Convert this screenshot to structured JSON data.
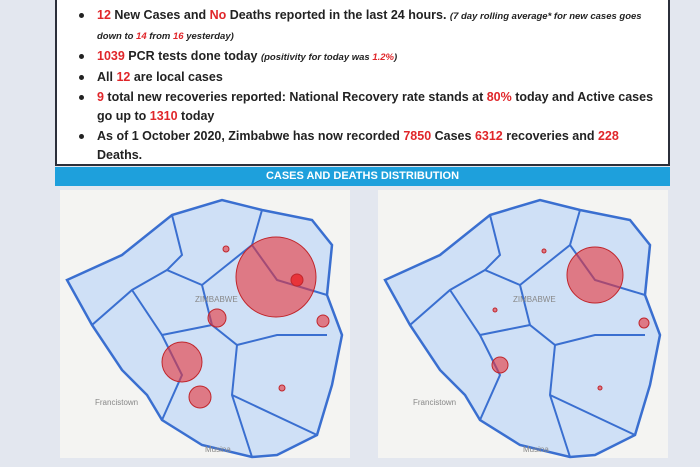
{
  "bullets": [
    {
      "segments": [
        {
          "text": "12",
          "highlight": true
        },
        {
          "text": " New Cases and "
        },
        {
          "text": "No",
          "highlight": true
        },
        {
          "text": " Deaths reported in the last 24 hours. "
        },
        {
          "text": "(7 day rolling average* for new cases goes down to ",
          "italic": true
        },
        {
          "text": "14",
          "italic": true,
          "highlight": true
        },
        {
          "text": " from ",
          "italic": true
        },
        {
          "text": "16",
          "italic": true,
          "highlight": true
        },
        {
          "text": " yesterday)",
          "italic": true
        }
      ]
    },
    {
      "segments": [
        {
          "text": "1039",
          "highlight": true
        },
        {
          "text": " PCR tests done today "
        },
        {
          "text": "(positivity for today was ",
          "italic": true
        },
        {
          "text": "1.2%",
          "italic": true,
          "highlight": true
        },
        {
          "text": ")",
          "italic": true
        }
      ]
    },
    {
      "segments": [
        {
          "text": "All "
        },
        {
          "text": "12",
          "highlight": true
        },
        {
          "text": " are local cases"
        }
      ]
    },
    {
      "segments": [
        {
          "text": "9",
          "highlight": true
        },
        {
          "text": " total new recoveries reported: National Recovery rate stands at "
        },
        {
          "text": "80%",
          "highlight": true
        },
        {
          "text": " today and Active cases go up to "
        },
        {
          "text": "1310",
          "highlight": true
        },
        {
          "text": " today"
        }
      ]
    },
    {
      "segments": [
        {
          "text": "As of 1 October 2020, Zimbabwe has now recorded "
        },
        {
          "text": "7850",
          "highlight": true
        },
        {
          "text": " Cases "
        },
        {
          "text": "6312",
          "highlight": true
        },
        {
          "text": " recoveries and "
        },
        {
          "text": "228",
          "highlight": true
        },
        {
          "text": " Deaths."
        }
      ]
    }
  ],
  "banner": "CASES AND DEATHS DISTRIBUTION",
  "maps": [
    {
      "labels": [
        "ZIMBABWE",
        "Francistown",
        "Musina"
      ]
    },
    {
      "labels": [
        "ZIMBABWE",
        "Francistown",
        "Musina"
      ]
    }
  ]
}
